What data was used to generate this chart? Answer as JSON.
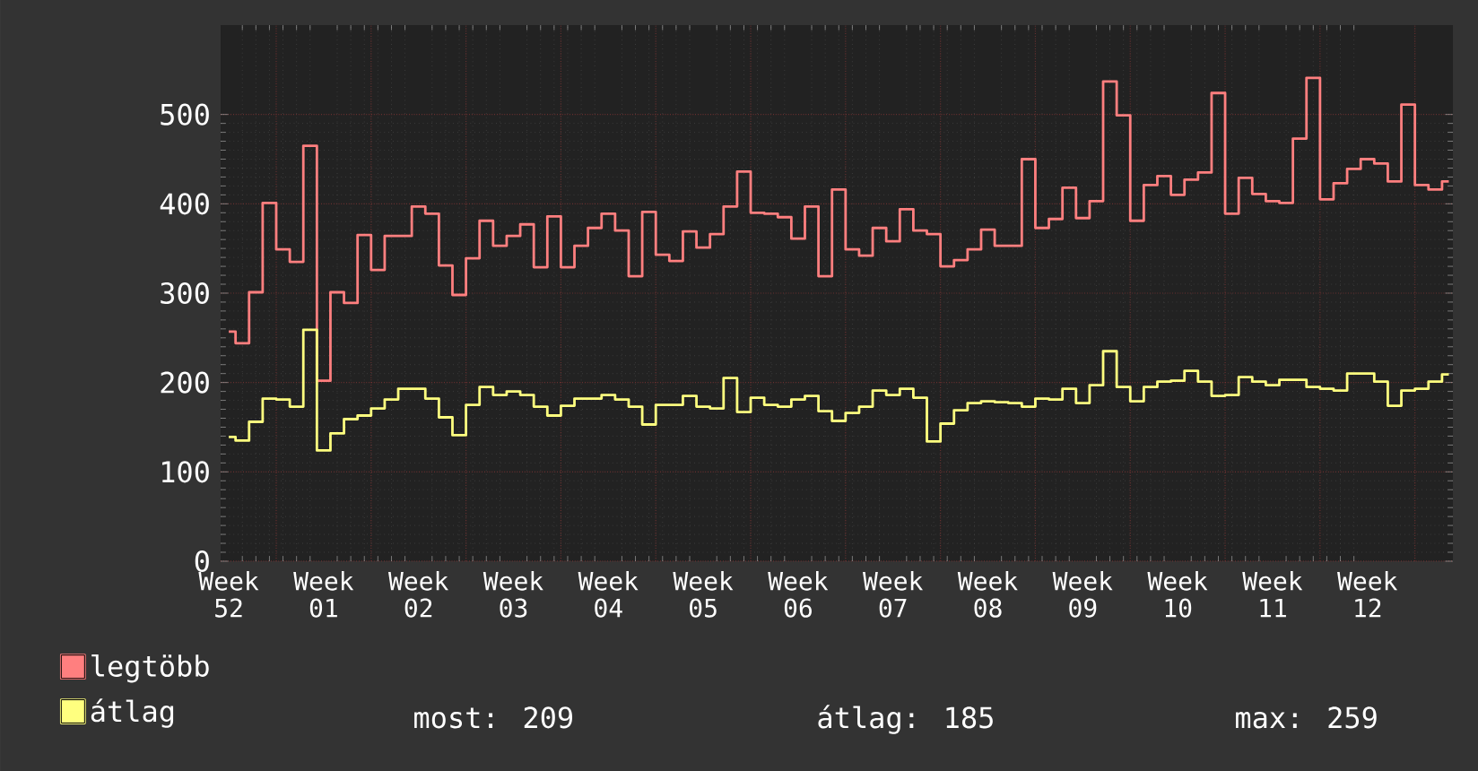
{
  "chart_data": {
    "type": "step",
    "categories": [
      "Week 52",
      null,
      null,
      null,
      null,
      null,
      null,
      "Week 01",
      null,
      null,
      null,
      null,
      null,
      null,
      "Week 02",
      null,
      null,
      null,
      null,
      null,
      null,
      "Week 03",
      null,
      null,
      null,
      null,
      null,
      null,
      "Week 04",
      null,
      null,
      null,
      null,
      null,
      null,
      "Week 05",
      null,
      null,
      null,
      null,
      null,
      null,
      "Week 06",
      null,
      null,
      null,
      null,
      null,
      null,
      "Week 07",
      null,
      null,
      null,
      null,
      null,
      null,
      "Week 08",
      null,
      null,
      null,
      null,
      null,
      null,
      "Week 09",
      null,
      null,
      null,
      null,
      null,
      null,
      "Week 10",
      null,
      null,
      null,
      null,
      null,
      null,
      "Week 11",
      null,
      null,
      null,
      null,
      null,
      null,
      "Week 12",
      null,
      null,
      null,
      null,
      null,
      null
    ],
    "series": [
      {
        "name": "legtöbb",
        "color": "#ff7f7f",
        "values": [
          257,
          244,
          301,
          401,
          349,
          335,
          465,
          202,
          301,
          289,
          365,
          326,
          364,
          364,
          397,
          389,
          331,
          298,
          339,
          381,
          353,
          364,
          377,
          329,
          386,
          329,
          353,
          373,
          389,
          370,
          319,
          391,
          343,
          336,
          369,
          351,
          366,
          397,
          436,
          390,
          389,
          385,
          361,
          397,
          319,
          416,
          349,
          342,
          373,
          358,
          394,
          370,
          366,
          330,
          337,
          349,
          371,
          353,
          353,
          450,
          373,
          383,
          418,
          384,
          403,
          537,
          499,
          381,
          421,
          431,
          410,
          427,
          435,
          524,
          389,
          429,
          411,
          403,
          401,
          473,
          541,
          405,
          423,
          439,
          450,
          445,
          425,
          511,
          421,
          416,
          425
        ]
      },
      {
        "name": "átlag",
        "color": "#ffff7f",
        "values": [
          139,
          135,
          156,
          182,
          181,
          173,
          259,
          124,
          143,
          159,
          163,
          171,
          181,
          193,
          193,
          182,
          161,
          141,
          175,
          195,
          186,
          190,
          186,
          173,
          163,
          174,
          182,
          182,
          186,
          181,
          173,
          153,
          175,
          175,
          185,
          173,
          171,
          205,
          167,
          183,
          175,
          173,
          181,
          185,
          168,
          157,
          166,
          173,
          191,
          186,
          193,
          183,
          134,
          154,
          169,
          177,
          179,
          178,
          177,
          173,
          182,
          181,
          193,
          177,
          197,
          235,
          195,
          179,
          195,
          201,
          202,
          213,
          201,
          185,
          186,
          206,
          201,
          197,
          203,
          203,
          195,
          193,
          191,
          210,
          210,
          201,
          174,
          191,
          193,
          201,
          209
        ]
      }
    ],
    "ylim": [
      0,
      600
    ],
    "yticks": [
      0,
      100,
      200,
      300,
      400,
      500
    ],
    "grid": true,
    "legend": "bottom",
    "annotations": [
      "most: 209",
      "átlag: 185",
      "max: 259"
    ]
  }
}
